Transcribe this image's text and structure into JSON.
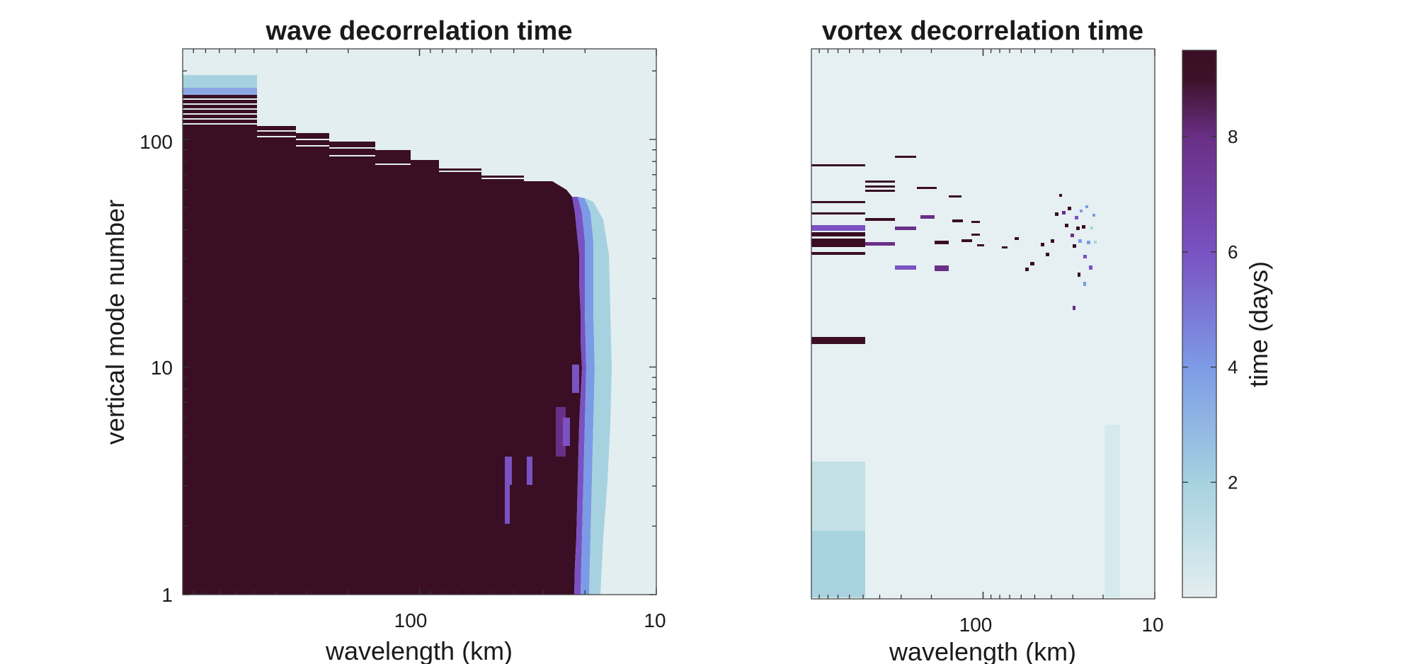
{
  "chart_data": [
    {
      "type": "heatmap",
      "title": "wave decorrelation time",
      "xlabel": "wavelength (km)",
      "ylabel": "vertical mode number",
      "x_scale": "log",
      "x_direction": "reversed",
      "xlim_km": [
        1000,
        10
      ],
      "x_tick_labels": [
        "100",
        "10"
      ],
      "y_scale": "log",
      "ylim": [
        1,
        250
      ],
      "y_tick_labels": [
        "1",
        "10",
        "100"
      ],
      "saturated_value_days": 9.5,
      "description_of_regions": [
        {
          "region": "wavelength > ~20 km, modes 1 to ~60",
          "value_days": 9.5
        },
        {
          "region": "transition band near 20-15 km wavelength",
          "value_days_range": [
            2,
            8
          ]
        },
        {
          "region": "wavelength < ~15 km and high modes",
          "value_days_range": [
            0,
            1
          ]
        }
      ]
    },
    {
      "type": "heatmap",
      "title": "vortex decorrelation time",
      "xlabel": "wavelength (km)",
      "x_scale": "log",
      "x_direction": "reversed",
      "xlim_km": [
        1000,
        10
      ],
      "x_tick_labels": [
        "100",
        "10"
      ],
      "y_scale": "log",
      "ylim": [
        1,
        250
      ],
      "background_value_days": 0.3,
      "features": [
        {
          "region": "largest wavelengths, modes 1 to 4",
          "value_days": 1.5
        },
        {
          "region": "largest wavelength, mode ~13",
          "value_days": 9.5
        },
        {
          "region": "scattered cells, modes 30-80",
          "value_days_range": [
            4,
            9.5
          ]
        }
      ]
    }
  ],
  "colorbar": {
    "label": "time (days)",
    "range_days": [
      0,
      9.5
    ],
    "tick_labels": [
      "2",
      "4",
      "6",
      "8"
    ],
    "tick_values": [
      2,
      4,
      6,
      8
    ],
    "colors": [
      "#e3eef0",
      "#a6d2e0",
      "#7c9be6",
      "#7a52c2",
      "#6a2f86",
      "#3c1127",
      "#3a0e24"
    ]
  }
}
